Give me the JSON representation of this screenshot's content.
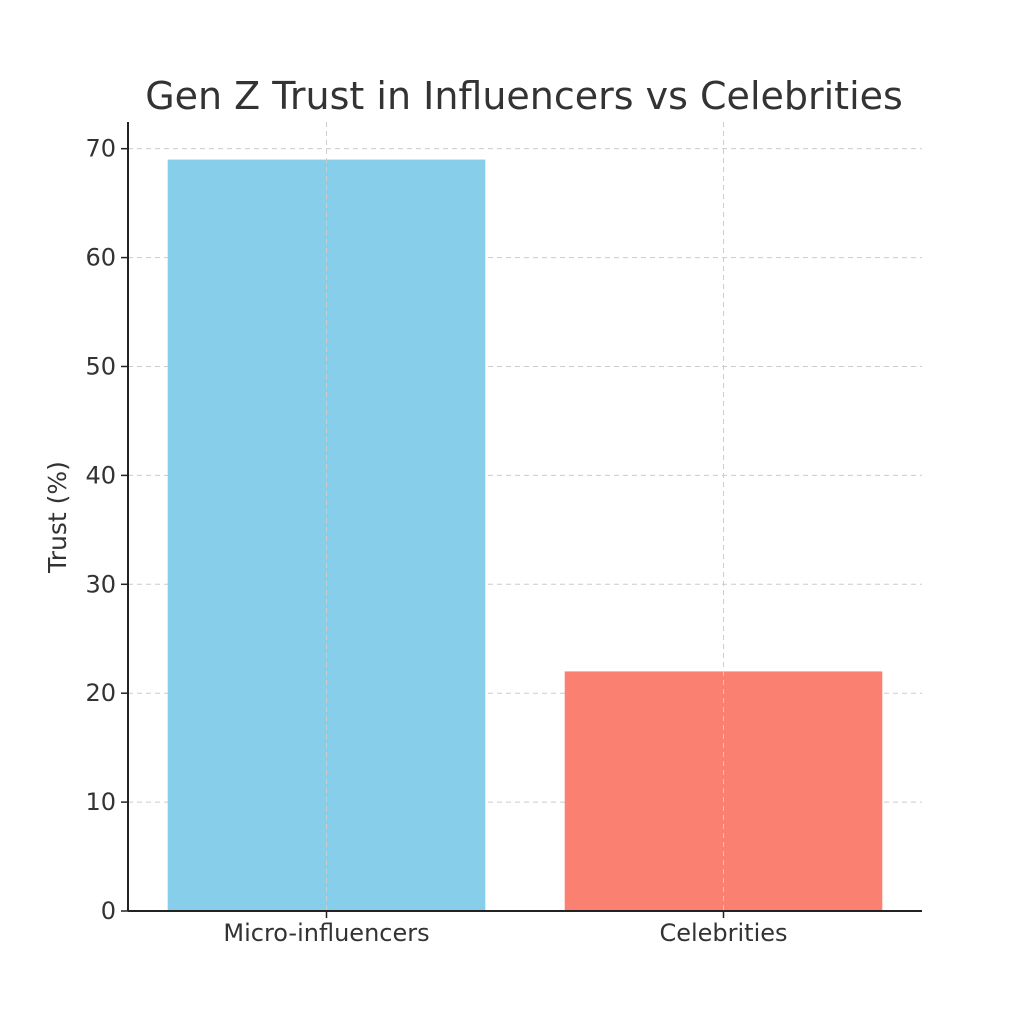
{
  "chart_data": {
    "type": "bar",
    "title": "Gen Z Trust in Influencers vs Celebrities",
    "xlabel": "",
    "ylabel": "Trust (%)",
    "categories": [
      "Micro-influencers",
      "Celebrities"
    ],
    "values": [
      69,
      22
    ],
    "colors": [
      "#87CEEB",
      "#FA8072"
    ],
    "ylim": [
      0,
      72.45
    ],
    "yticks": [
      0,
      10,
      20,
      30,
      40,
      50,
      60,
      70
    ],
    "grid": true
  }
}
